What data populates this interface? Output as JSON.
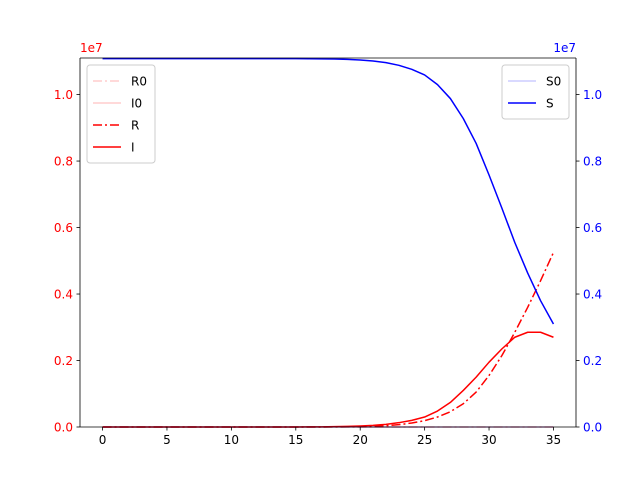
{
  "chart_data": {
    "type": "line",
    "title": "",
    "xlabel": "",
    "ylabel_left": "",
    "ylabel_right": "",
    "grid": false,
    "xlim": [
      -1.75,
      36.75
    ],
    "ylim_left": [
      0,
      11100000
    ],
    "ylim_right": [
      0,
      11100000
    ],
    "x_ticks": [
      0,
      5,
      10,
      15,
      20,
      25,
      30,
      35
    ],
    "x_tick_labels": [
      "0",
      "5",
      "10",
      "15",
      "20",
      "25",
      "30",
      "35"
    ],
    "y_left_ticks": [
      0,
      2000000,
      4000000,
      6000000,
      8000000,
      10000000
    ],
    "y_left_tick_labels": [
      "0.0",
      "0.2",
      "0.4",
      "0.6",
      "0.8",
      "1.0"
    ],
    "y_left_offset_label": "1e7",
    "y_right_ticks": [
      0,
      2000000,
      4000000,
      6000000,
      8000000,
      10000000
    ],
    "y_right_tick_labels": [
      "0.0",
      "0.2",
      "0.4",
      "0.6",
      "0.8",
      "1.0"
    ],
    "y_right_offset_label": "1e7",
    "colors": {
      "left_axis": "#ff0000",
      "right_axis": "#0000ff",
      "spine": "#000000"
    },
    "legend_left": {
      "placement": "top-left",
      "entries": [
        "R0",
        "I0",
        "R",
        "I"
      ]
    },
    "legend_right": {
      "placement": "top-right",
      "entries": [
        "S0",
        "S"
      ]
    },
    "x": [
      0,
      1,
      2,
      3,
      4,
      5,
      6,
      7,
      8,
      9,
      10,
      11,
      12,
      13,
      14,
      15,
      16,
      17,
      18,
      19,
      20,
      21,
      22,
      23,
      24,
      25,
      26,
      27,
      28,
      29,
      30,
      31,
      32,
      33,
      34,
      35
    ],
    "series": [
      {
        "name": "R0",
        "axis": "left",
        "color": "#ff0000",
        "opacity": 0.2,
        "dash": "dashdot",
        "values": [
          0,
          0,
          0,
          0,
          0,
          0,
          0,
          0,
          0,
          0,
          0,
          0,
          0,
          0,
          0,
          0,
          0,
          0,
          0,
          0,
          0,
          0,
          0,
          0,
          0,
          0,
          0,
          0,
          0,
          0,
          0,
          0,
          0,
          0,
          0,
          0
        ]
      },
      {
        "name": "I0",
        "axis": "left",
        "color": "#ff0000",
        "opacity": 0.2,
        "dash": "solid",
        "values": [
          0,
          0,
          0,
          0,
          0,
          0,
          0,
          0,
          0,
          0,
          0,
          0,
          0,
          0,
          0,
          0,
          0,
          0,
          0,
          0,
          0,
          0,
          0,
          0,
          0,
          0,
          0,
          0,
          0,
          0,
          0,
          0,
          0,
          0,
          0,
          0
        ]
      },
      {
        "name": "R",
        "axis": "left",
        "color": "#ff0000",
        "opacity": 1,
        "dash": "dashdot",
        "values": [
          0,
          0,
          0,
          0,
          0,
          0,
          0,
          0,
          0,
          0,
          0,
          0,
          0,
          0,
          0,
          0,
          0,
          1000,
          3000,
          6000,
          12000,
          22000,
          40000,
          70000,
          120000,
          190000,
          300000,
          460000,
          700000,
          1050000,
          1550000,
          2150000,
          2850000,
          3600000,
          4400000,
          5250000
        ]
      },
      {
        "name": "I",
        "axis": "left",
        "color": "#ff0000",
        "opacity": 1,
        "dash": "solid",
        "values": [
          0,
          0,
          0,
          0,
          0,
          0,
          0,
          0,
          0,
          0,
          0,
          0,
          0,
          0,
          0,
          0,
          2000,
          5000,
          10000,
          18000,
          30000,
          50000,
          80000,
          130000,
          200000,
          300000,
          480000,
          740000,
          1100000,
          1500000,
          1950000,
          2350000,
          2700000,
          2850000,
          2850000,
          2700000
        ]
      },
      {
        "name": "S0",
        "axis": "right",
        "color": "#0000ff",
        "opacity": 0.2,
        "dash": "solid",
        "values": [
          0,
          0,
          0,
          0,
          0,
          0,
          0,
          0,
          0,
          0,
          0,
          0,
          0,
          0,
          0,
          0,
          0,
          0,
          0,
          0,
          0,
          0,
          0,
          0,
          0,
          0,
          0,
          0,
          0,
          0,
          0,
          0,
          0,
          0,
          0,
          0
        ]
      },
      {
        "name": "S",
        "axis": "right",
        "color": "#0000ff",
        "opacity": 1,
        "dash": "solid",
        "values": [
          11080000,
          11080000,
          11080000,
          11080000,
          11080000,
          11080000,
          11080000,
          11080000,
          11080000,
          11080000,
          11080000,
          11080000,
          11080000,
          11080000,
          11080000,
          11080000,
          11078000,
          11075000,
          11068000,
          11058000,
          11040000,
          11010000,
          10960000,
          10880000,
          10760000,
          10590000,
          10300000,
          9880000,
          9280000,
          8530000,
          7580000,
          6580000,
          5550000,
          4630000,
          3800000,
          3100000
        ]
      }
    ]
  }
}
